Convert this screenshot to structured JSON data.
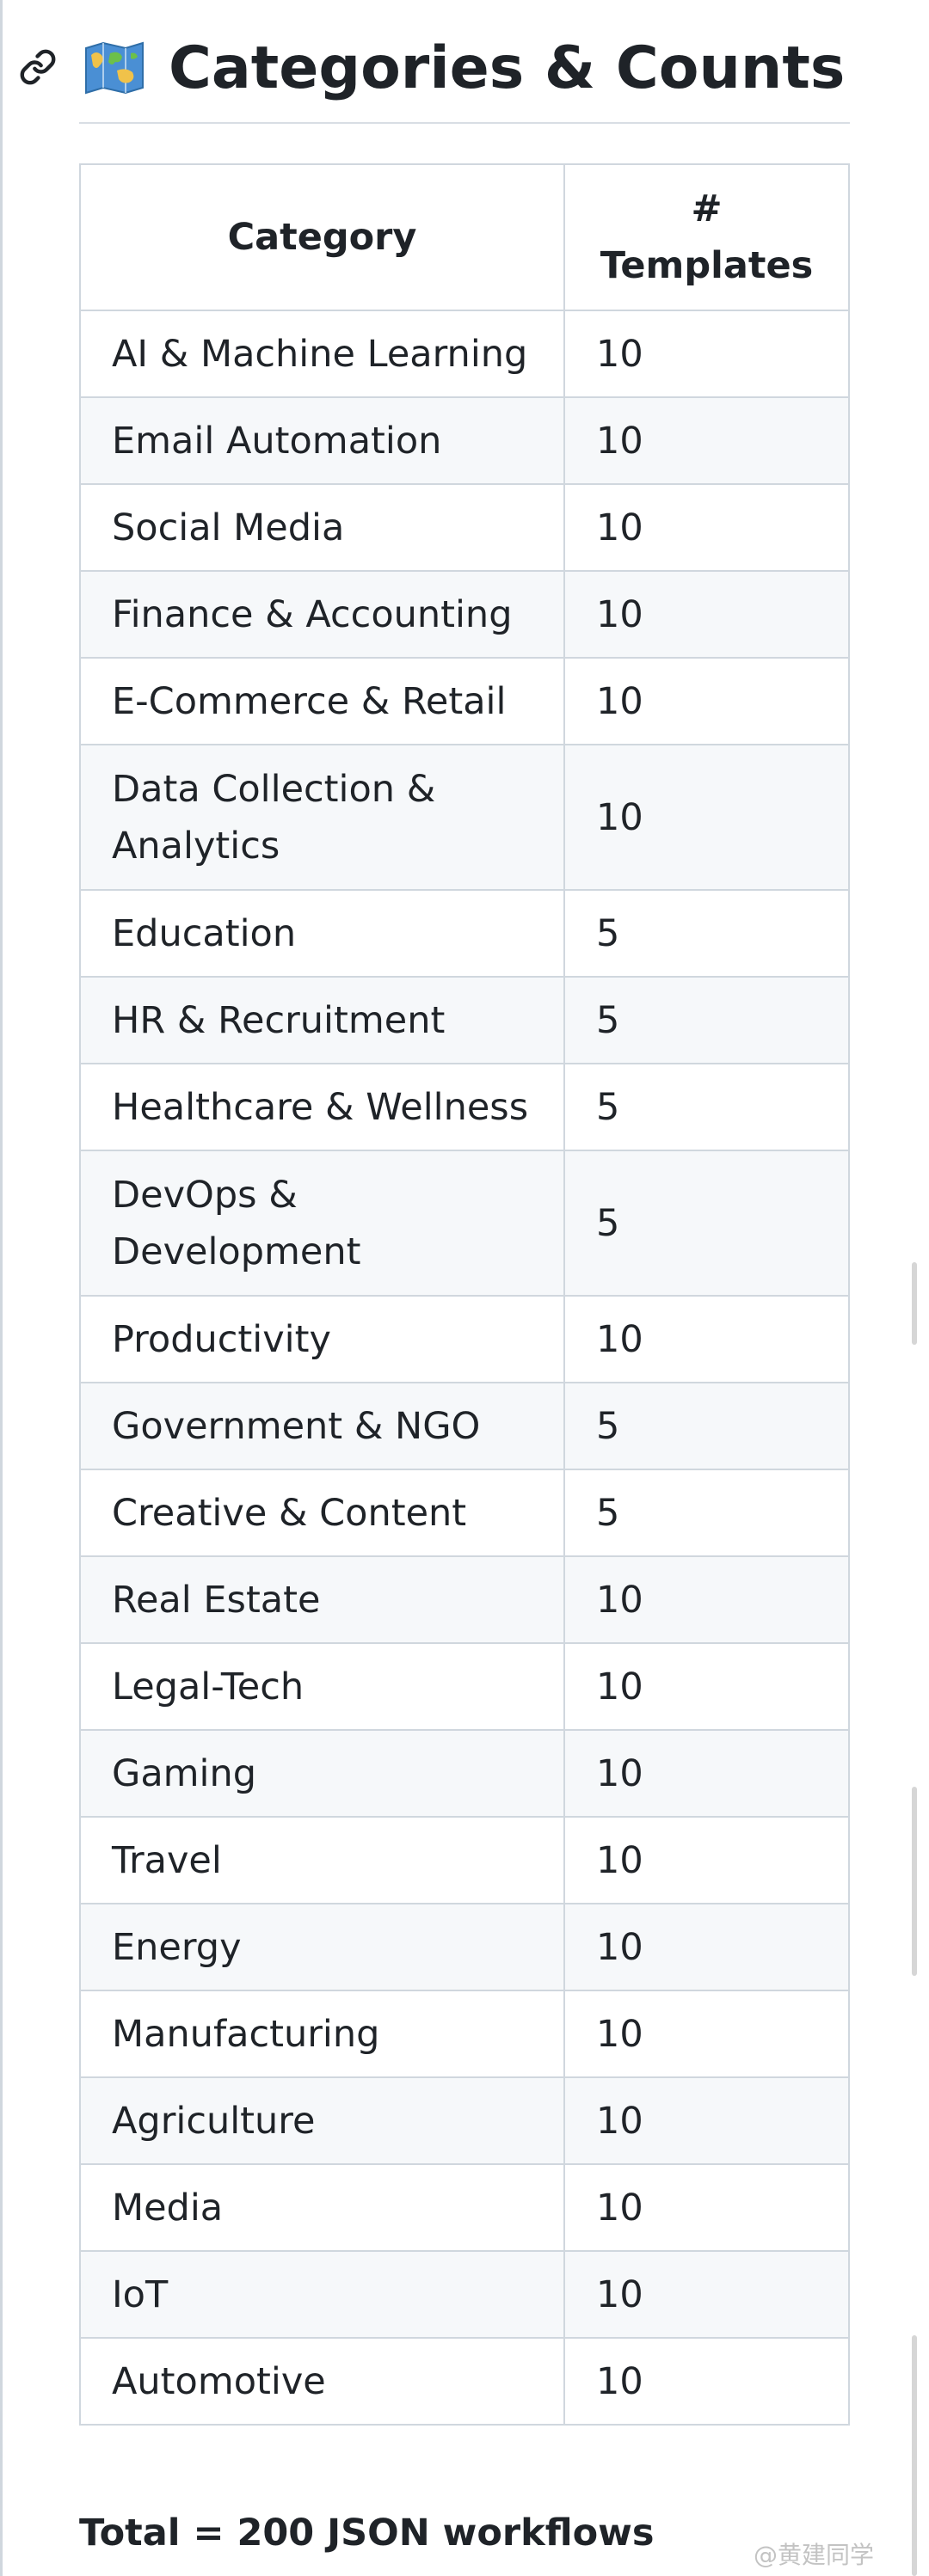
{
  "section": {
    "title": "Categories & Counts",
    "link_icon": "link-icon",
    "heading_icon": "world-map-icon"
  },
  "table": {
    "headers": {
      "category": "Category",
      "templates_line1": "#",
      "templates_line2": "Templates"
    },
    "rows": [
      {
        "category": "AI & Machine Learning",
        "templates": "10"
      },
      {
        "category": "Email Automation",
        "templates": "10"
      },
      {
        "category": "Social Media",
        "templates": "10"
      },
      {
        "category": "Finance & Accounting",
        "templates": "10"
      },
      {
        "category": "E-Commerce & Retail",
        "templates": "10"
      },
      {
        "category": "Data Collection & Analytics",
        "templates": "10"
      },
      {
        "category": "Education",
        "templates": "5"
      },
      {
        "category": "HR & Recruitment",
        "templates": "5"
      },
      {
        "category": "Healthcare & Wellness",
        "templates": "5"
      },
      {
        "category": "DevOps & Development",
        "templates": "5"
      },
      {
        "category": "Productivity",
        "templates": "10"
      },
      {
        "category": "Government & NGO",
        "templates": "5"
      },
      {
        "category": "Creative & Content",
        "templates": "5"
      },
      {
        "category": "Real Estate",
        "templates": "10"
      },
      {
        "category": "Legal-Tech",
        "templates": "10"
      },
      {
        "category": "Gaming",
        "templates": "10"
      },
      {
        "category": "Travel",
        "templates": "10"
      },
      {
        "category": "Energy",
        "templates": "10"
      },
      {
        "category": "Manufacturing",
        "templates": "10"
      },
      {
        "category": "Agriculture",
        "templates": "10"
      },
      {
        "category": "Media",
        "templates": "10"
      },
      {
        "category": "IoT",
        "templates": "10"
      },
      {
        "category": "Automotive",
        "templates": "10"
      }
    ]
  },
  "total": "Total = 200 JSON workflows",
  "watermark": "@黄建同学",
  "colors": {
    "text": "#1f2328",
    "border": "#d0d7de",
    "stripe": "#f6f8fa",
    "map_water": "#4a8fd4",
    "map_land": "#f0c24a"
  }
}
